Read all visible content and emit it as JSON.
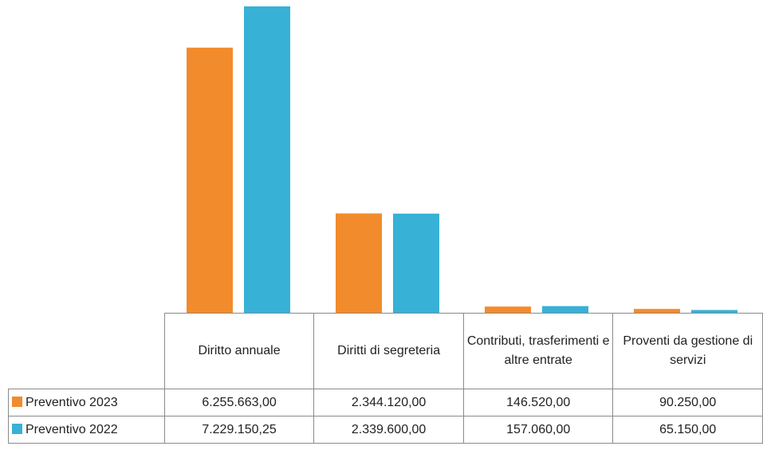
{
  "chart_data": {
    "type": "bar",
    "categories": [
      "Diritto annuale",
      "Diritti di segreteria",
      "Contributi, trasferimenti e altre entrate",
      "Proventi da gestione di servizi"
    ],
    "series": [
      {
        "name": "Preventivo 2023",
        "color": "#f28b2c",
        "values": [
          6255663,
          2344120,
          146520,
          90250
        ],
        "value_labels": [
          "6.255.663,00",
          "2.344.120,00",
          "146.520,00",
          "90.250,00"
        ]
      },
      {
        "name": "Preventivo 2022",
        "color": "#37b1d6",
        "values": [
          7229150.25,
          2339600,
          157060,
          65150
        ],
        "value_labels": [
          "7.229.150,25",
          "2.339.600,00",
          "157.060,00",
          "65.150,00"
        ]
      }
    ]
  }
}
